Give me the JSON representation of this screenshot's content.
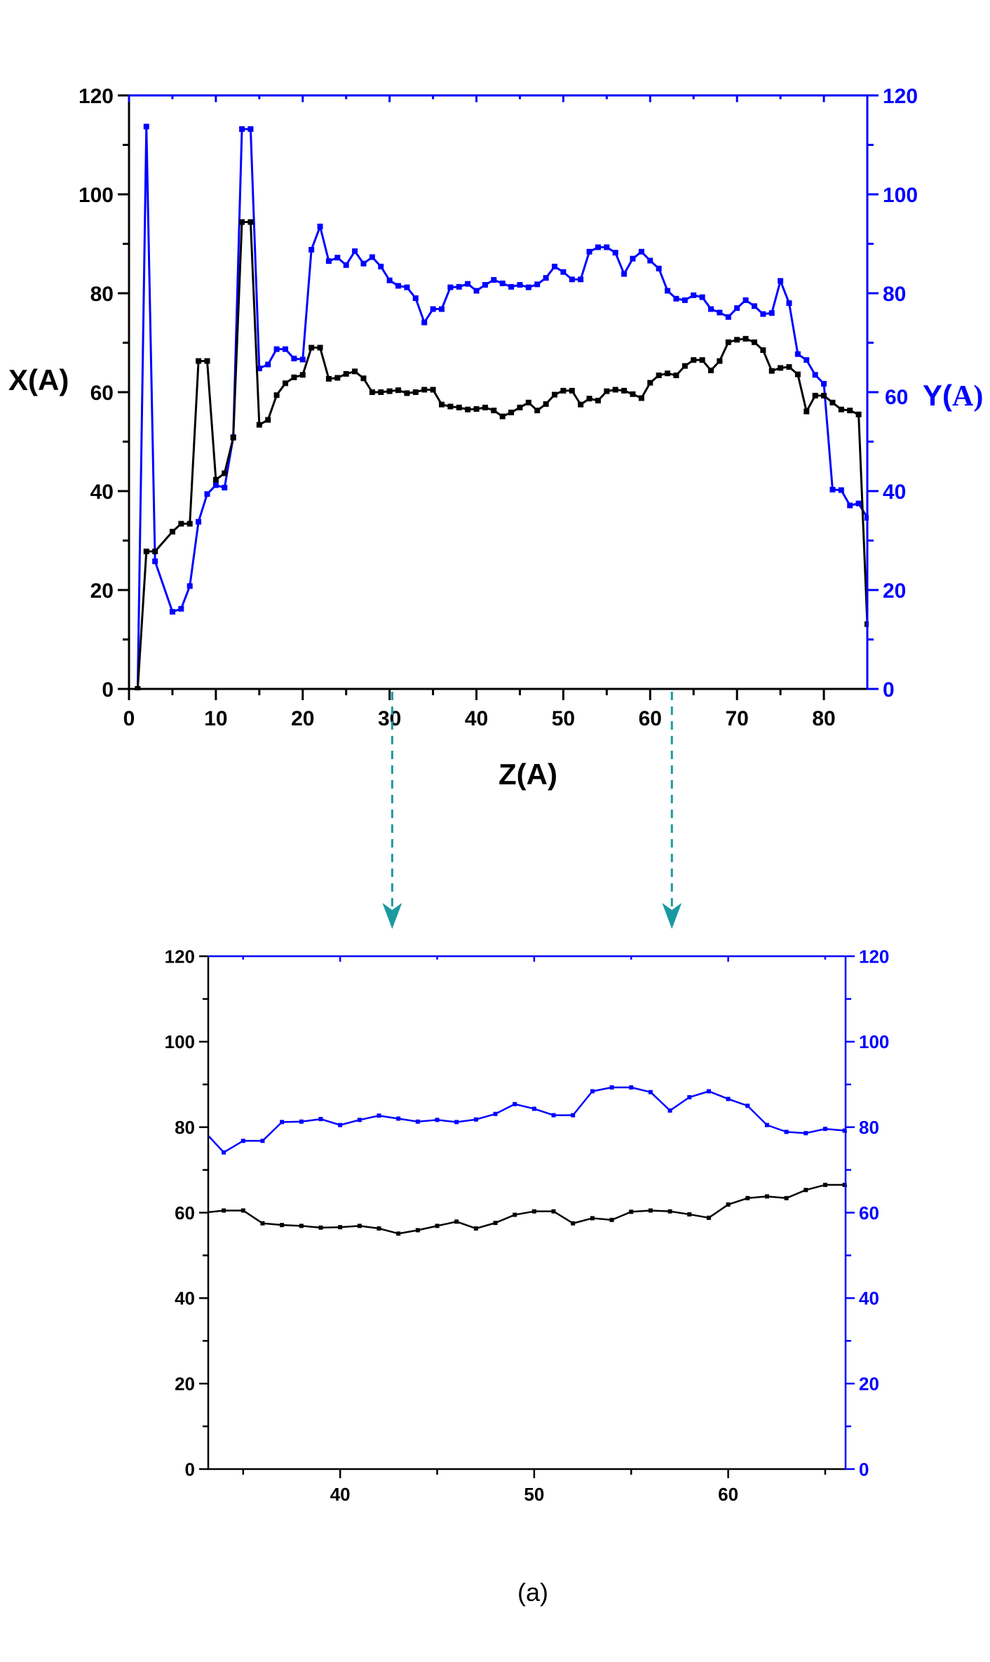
{
  "colors": {
    "series_x": "#000000",
    "series_y": "#0000ff",
    "left_axis": "#000000",
    "right_axis": "#0000ff",
    "arrow": "#1a9aa0"
  },
  "caption": "(a)",
  "chart_data": [
    {
      "id": "main",
      "type": "line",
      "title": "",
      "xlabel": "Z(A)",
      "ylabel": "X(A)",
      "ylabel_right_parts": [
        "Y(",
        "A)"
      ],
      "xlim": [
        0,
        85
      ],
      "ylim": [
        0,
        120
      ],
      "ylim_right": [
        0,
        120
      ],
      "xticks": [
        0,
        10,
        20,
        30,
        40,
        50,
        60,
        70,
        80
      ],
      "yticks": [
        0,
        20,
        40,
        60,
        80,
        100,
        120
      ],
      "grid": false,
      "legend": null,
      "x": [
        1,
        2,
        3,
        5,
        6,
        7,
        8,
        9,
        10,
        11,
        12,
        13,
        14,
        15,
        16,
        17,
        18,
        19,
        20,
        21,
        22,
        23,
        24,
        25,
        26,
        27,
        28,
        29,
        30,
        31,
        32,
        33,
        34,
        35,
        36,
        37,
        38,
        39,
        40,
        41,
        42,
        43,
        44,
        45,
        46,
        47,
        48,
        49,
        50,
        51,
        52,
        53,
        54,
        55,
        56,
        57,
        58,
        59,
        60,
        61,
        62,
        63,
        64,
        65,
        66,
        67,
        68,
        69,
        70,
        71,
        72,
        73,
        74,
        75,
        76,
        77,
        78,
        79,
        80,
        81,
        82,
        83,
        84,
        85
      ],
      "series": [
        {
          "name": "X(A)",
          "axis": "left",
          "color": "#000000",
          "marker": "square",
          "values": [
            0,
            27.8,
            27.8,
            31.8,
            33.4,
            33.4,
            66.3,
            66.3,
            42.3,
            43.6,
            50.8,
            94.4,
            94.4,
            53.4,
            54.4,
            59.4,
            61.8,
            63.0,
            63.5,
            69.0,
            69.0,
            62.7,
            62.9,
            63.7,
            64.2,
            62.8,
            60.0,
            60.0,
            60.2,
            60.4,
            59.8,
            60.0,
            60.5,
            60.5,
            57.5,
            57.1,
            56.9,
            56.5,
            56.6,
            56.9,
            56.3,
            55.1,
            55.9,
            56.9,
            57.9,
            56.3,
            57.6,
            59.5,
            60.3,
            60.3,
            57.5,
            58.7,
            58.3,
            60.2,
            60.5,
            60.3,
            59.6,
            58.8,
            61.9,
            63.4,
            63.8,
            63.4,
            65.3,
            66.5,
            66.5,
            64.4,
            66.3,
            70.1,
            70.6,
            70.8,
            70.1,
            68.5,
            64.3,
            64.9,
            65.1,
            63.6,
            56.1,
            59.3,
            59.3,
            57.9,
            56.5,
            56.3,
            55.5,
            13.1
          ]
        },
        {
          "name": "Y(A)",
          "axis": "right",
          "color": "#0000ff",
          "marker": "square",
          "values": [
            0,
            113.7,
            25.8,
            15.6,
            16.2,
            20.8,
            33.8,
            39.4,
            41.2,
            40.7,
            50.9,
            113.2,
            113.2,
            64.8,
            65.6,
            68.7,
            68.7,
            66.8,
            66.6,
            88.8,
            93.5,
            86.5,
            87.2,
            85.7,
            88.5,
            86.0,
            87.3,
            85.4,
            82.6,
            81.5,
            81.2,
            79.0,
            74.1,
            76.8,
            76.8,
            81.2,
            81.3,
            81.9,
            80.5,
            81.7,
            82.7,
            82.0,
            81.3,
            81.7,
            81.2,
            81.8,
            83.1,
            85.4,
            84.3,
            82.8,
            82.8,
            88.4,
            89.3,
            89.3,
            88.2,
            83.9,
            87.0,
            88.4,
            86.6,
            85.0,
            80.5,
            78.9,
            78.6,
            79.6,
            79.2,
            76.8,
            76.1,
            75.2,
            77.0,
            78.6,
            77.4,
            75.8,
            76.0,
            82.5,
            78.0,
            67.7,
            66.5,
            63.5,
            61.7,
            40.3,
            40.2,
            37.1,
            37.5,
            34.6
          ]
        }
      ],
      "annotations": [
        {
          "type": "dashed-arrow",
          "from_x": 30.3,
          "to": "inset"
        },
        {
          "type": "dashed-arrow",
          "from_x": 62.5,
          "to": "inset"
        }
      ]
    },
    {
      "id": "inset",
      "type": "line",
      "title": "",
      "xlabel": "",
      "ylabel": "",
      "xlim": [
        33.2,
        66.05
      ],
      "ylim": [
        0,
        120
      ],
      "ylim_right": [
        0,
        120
      ],
      "xticks": [
        40,
        50,
        60
      ],
      "xticks_minor": [
        35,
        45,
        55,
        65
      ],
      "yticks": [
        0,
        20,
        40,
        60,
        80,
        100,
        120
      ],
      "grid": false,
      "legend": null,
      "source": "zoom of main chart Z range 33-66"
    }
  ]
}
